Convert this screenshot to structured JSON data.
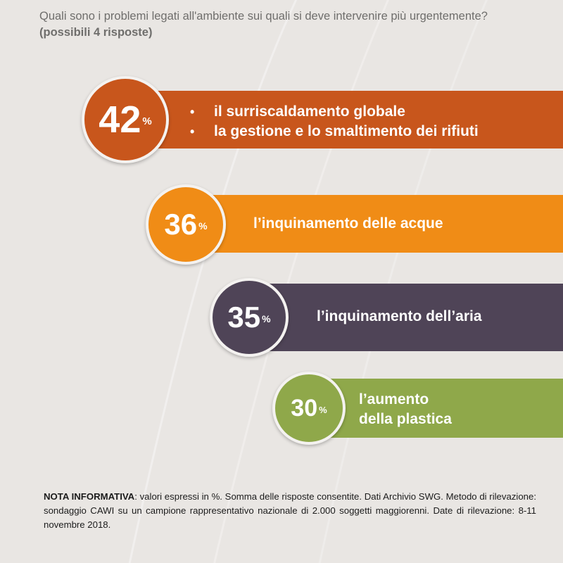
{
  "header": {
    "title": "Quali sono i problemi legati all'ambiente sui quali si deve intervenire più urgentemente?",
    "subtitle": "(possibili 4 risposte)"
  },
  "chart_data": {
    "type": "bar",
    "title": "Quali sono i problemi legati all'ambiente sui quali si deve intervenire più urgentemente?",
    "subtitle": "(possibili 4 risposte)",
    "unit": "%",
    "values": [
      42,
      36,
      35,
      30
    ],
    "items": [
      {
        "value": 42,
        "lines": [
          "il surriscaldamento globale",
          "la gestione e lo smaltimento dei rifiuti"
        ],
        "bullets": true,
        "color": "#c8561c"
      },
      {
        "value": 36,
        "lines": [
          "l’inquinamento delle acque"
        ],
        "bullets": false,
        "color": "#f08c16"
      },
      {
        "value": 35,
        "lines": [
          "l’inquinamento dell’aria"
        ],
        "bullets": false,
        "color": "#4f4457"
      },
      {
        "value": 30,
        "lines": [
          "l’aumento",
          "della plastica"
        ],
        "bullets": false,
        "color": "#8fa84a"
      }
    ]
  },
  "note": {
    "label": "NOTA INFORMATIVA",
    "text": ": valori espressi in %. Somma delle risposte consentite. Dati Archivio SWG. Metodo di rilevazione: sondaggio CAWI su un campione rappresentativo nazionale di 2.000 soggetti maggiorenni. Date di rilevazione: 8-11 novembre 2018."
  }
}
